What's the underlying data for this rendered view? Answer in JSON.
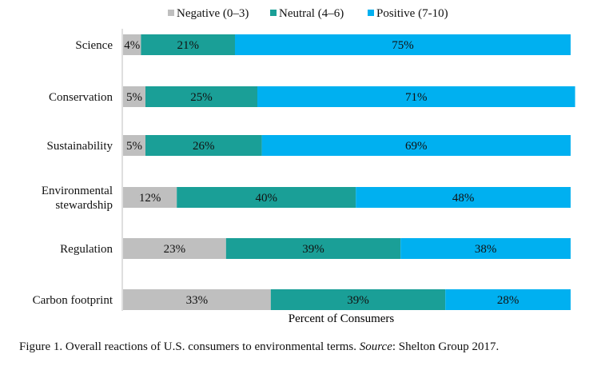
{
  "chart_data": {
    "type": "bar",
    "orientation": "horizontal",
    "stacked": true,
    "categories": [
      "Science",
      "Conservation",
      "Sustainability",
      "Environmental stewardship",
      "Regulation",
      "Carbon footprint"
    ],
    "series": [
      {
        "name": "Negative (0–3)",
        "color": "#bfbfbf",
        "values": [
          4,
          5,
          5,
          12,
          23,
          33
        ]
      },
      {
        "name": "Neutral (4–6)",
        "color": "#1a9f97",
        "values": [
          21,
          25,
          26,
          40,
          39,
          39
        ]
      },
      {
        "name": "Positive (7-10)",
        "color": "#00b0f0",
        "values": [
          75,
          71,
          69,
          48,
          38,
          28
        ]
      }
    ],
    "xlabel": "Percent of Consumers",
    "ylabel": "",
    "xlim": [
      0,
      100
    ],
    "value_suffix": "%",
    "legend_position": "top",
    "grid": false
  },
  "caption": {
    "prefix": "Figure 1. Overall reactions of U.S. consumers to environmental terms. ",
    "source_label": "Source",
    "suffix": ": Shelton Group 2017."
  }
}
